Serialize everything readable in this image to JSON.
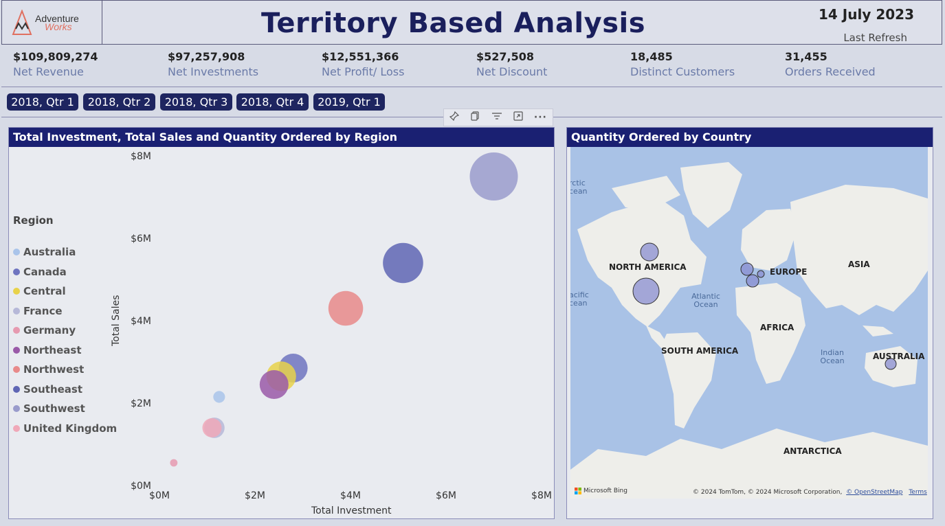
{
  "header": {
    "logo_line1": "Adventure",
    "logo_line2": "Works",
    "title": "Territory Based Analysis",
    "date": "14 July 2023",
    "refresh_label": "Last Refresh"
  },
  "kpis": [
    {
      "value": "$109,809,274",
      "label": "Net Revenue"
    },
    {
      "value": "$97,257,908",
      "label": "Net Investments"
    },
    {
      "value": "$12,551,366",
      "label": "Net Profit/ Loss"
    },
    {
      "value": "$527,508",
      "label": "Net Discount"
    },
    {
      "value": "18,485",
      "label": "Distinct Customers"
    },
    {
      "value": "31,455",
      "label": "Orders Received"
    }
  ],
  "slicers": [
    "2018, Qtr 1",
    "2018, Qtr 2",
    "2018, Qtr 3",
    "2018, Qtr 4",
    "2019, Qtr 1"
  ],
  "toolbar_icons": [
    "pin-icon",
    "copy-icon",
    "filter-icon",
    "focus-mode-icon",
    "more-options-icon"
  ],
  "scatter": {
    "title": "Total Investment, Total Sales and Quantity Ordered by Region",
    "legend_title": "Region",
    "regions": [
      {
        "name": "Australia",
        "color": "#a9c4ea"
      },
      {
        "name": "Canada",
        "color": "#6e74c0"
      },
      {
        "name": "Central",
        "color": "#e8d24a"
      },
      {
        "name": "France",
        "color": "#b6b8d8"
      },
      {
        "name": "Germany",
        "color": "#e69ab0"
      },
      {
        "name": "Northeast",
        "color": "#9a5aa8"
      },
      {
        "name": "Northwest",
        "color": "#e88a8a"
      },
      {
        "name": "Southeast",
        "color": "#5f66b4"
      },
      {
        "name": "Southwest",
        "color": "#9a9ccc"
      },
      {
        "name": "United Kingdom",
        "color": "#f0a8b8"
      }
    ],
    "xlabel": "Total Investment",
    "ylabel": "Total Sales",
    "xticks": [
      "$0M",
      "$2M",
      "$4M",
      "$6M",
      "$8M"
    ],
    "yticks": [
      "$8M",
      "$6M",
      "$4M",
      "$2M",
      "$0M"
    ]
  },
  "chart_data": {
    "type": "scatter",
    "xlabel": "Total Investment",
    "ylabel": "Total Sales",
    "xlim": [
      0,
      8000000
    ],
    "ylim": [
      0,
      8000000
    ],
    "series": [
      {
        "name": "Southwest",
        "x": 7000000,
        "y": 7500000,
        "size": 5000
      },
      {
        "name": "Southeast",
        "x": 5100000,
        "y": 5400000,
        "size": 3500
      },
      {
        "name": "Northwest",
        "x": 3900000,
        "y": 4300000,
        "size": 2600
      },
      {
        "name": "Canada",
        "x": 2800000,
        "y": 2850000,
        "size": 1800
      },
      {
        "name": "Central",
        "x": 2550000,
        "y": 2650000,
        "size": 1900
      },
      {
        "name": "Northeast",
        "x": 2400000,
        "y": 2450000,
        "size": 1800
      },
      {
        "name": "Australia",
        "x": 1250000,
        "y": 2150000,
        "size": 300
      },
      {
        "name": "France",
        "x": 1150000,
        "y": 1400000,
        "size": 900
      },
      {
        "name": "United Kingdom",
        "x": 1100000,
        "y": 1400000,
        "size": 800
      },
      {
        "name": "Germany",
        "x": 300000,
        "y": 550000,
        "size": 120
      }
    ]
  },
  "map": {
    "title": "Quantity Ordered by Country",
    "continents": [
      "NORTH AMERICA",
      "EUROPE",
      "ASIA",
      "AFRICA",
      "SOUTH AMERICA",
      "AUSTRALIA",
      "ANTARCTICA"
    ],
    "oceans": [
      "Atlantic Ocean",
      "Indian Ocean",
      "rctic cean",
      "acific cean",
      "acific cean"
    ],
    "bing_label": "Microsoft Bing",
    "copyright": "© 2024 TomTom, © 2024 Microsoft Corporation,",
    "osm_link": "© OpenStreetMap",
    "terms_link": "Terms"
  }
}
